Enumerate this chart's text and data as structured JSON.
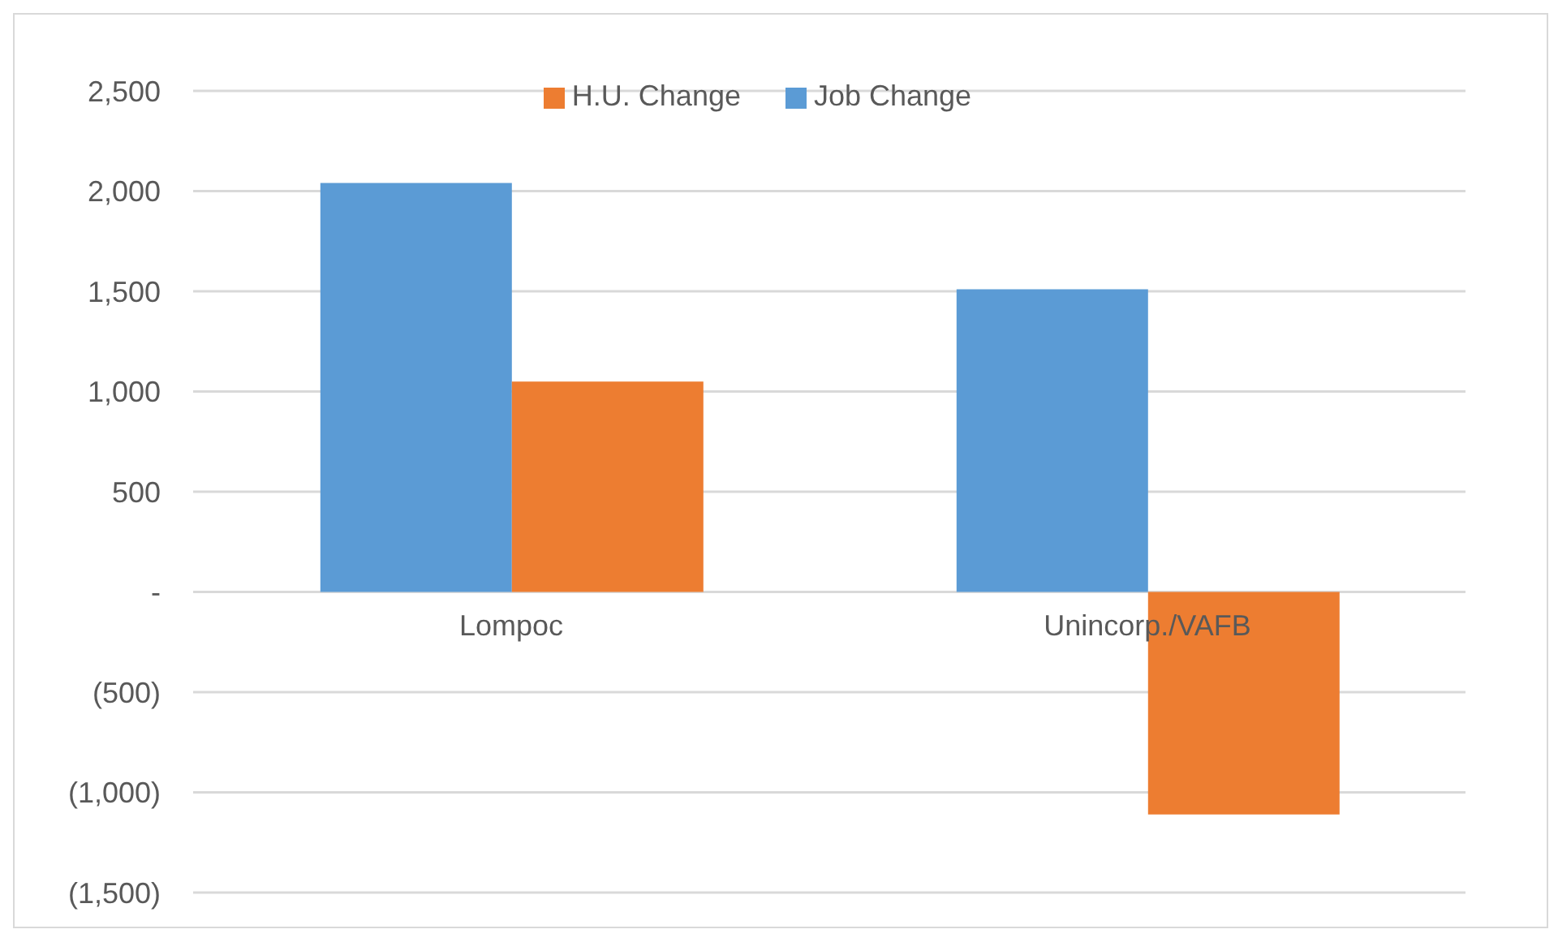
{
  "chart_data": {
    "type": "bar",
    "categories": [
      "Lompoc",
      "Unincorp./VAFB"
    ],
    "series": [
      {
        "name": "Job Change",
        "color": "#5b9bd5",
        "values": [
          2040,
          1510
        ]
      },
      {
        "name": "H.U. Change",
        "color": "#ed7d31",
        "values": [
          1050,
          -1110
        ]
      }
    ],
    "ylim": [
      -1500,
      2500
    ],
    "yticks": [
      {
        "value": -1500,
        "label": "(1,500)"
      },
      {
        "value": -1000,
        "label": "(1,000)"
      },
      {
        "value": -500,
        "label": "(500)"
      },
      {
        "value": 0,
        "label": "-"
      },
      {
        "value": 500,
        "label": "500"
      },
      {
        "value": 1000,
        "label": "1,000"
      },
      {
        "value": 1500,
        "label": "1,500"
      },
      {
        "value": 2000,
        "label": "2,000"
      },
      {
        "value": 2500,
        "label": "2,500"
      }
    ],
    "grid": "y",
    "legend": "top"
  }
}
